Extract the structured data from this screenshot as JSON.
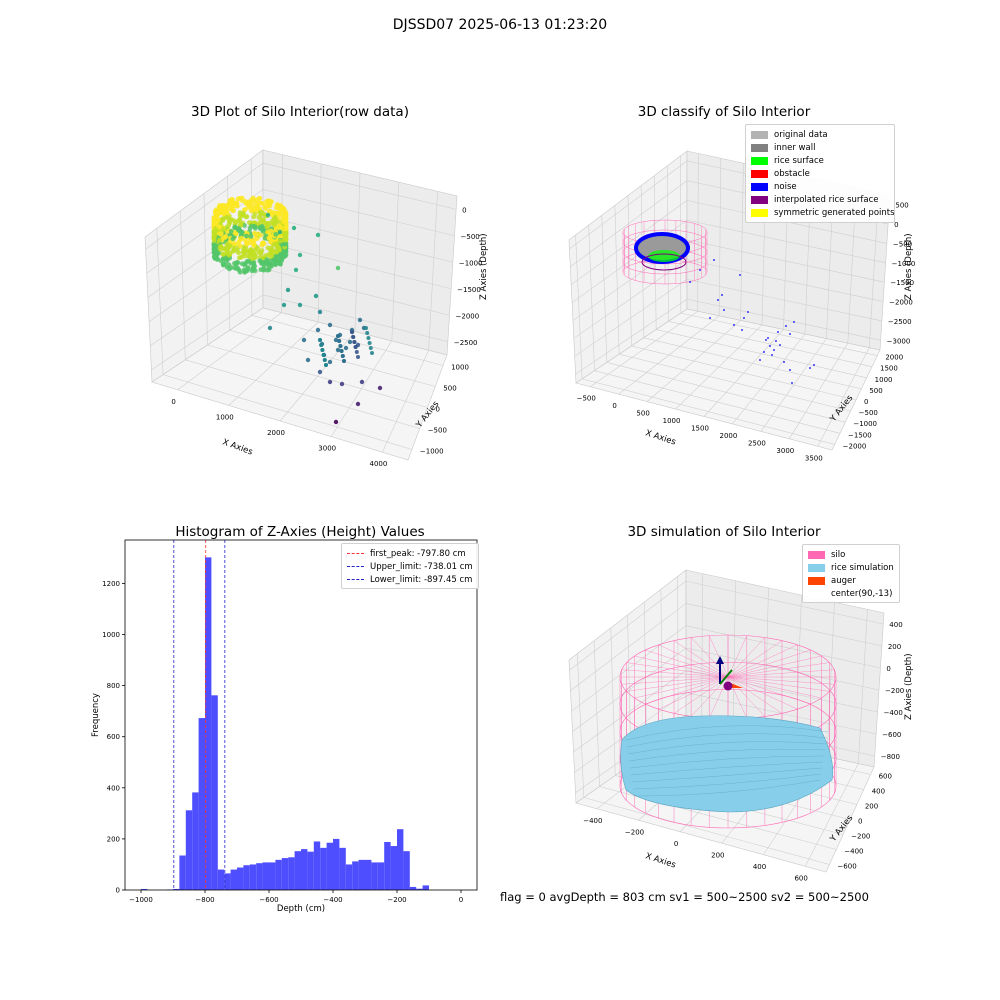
{
  "figure_title": "DJSSD07 2025-06-13 01:23:20",
  "status_line": "flag = 0     avgDepth = 803 cm  sv1 = 500~2500  sv2 = 500~2500",
  "colors": {
    "hist": "#4444ff",
    "peak": "#ff3333",
    "limit": "#2222cc",
    "silo": "#ff69b4",
    "rice": "#87ceeb",
    "auger": "#ff4500"
  },
  "chart_data": [
    {
      "type": "scatter",
      "title": "3D Plot of Silo Interior(row data)",
      "xlabel": "X Axies",
      "ylabel": "Y Axies",
      "zlabel": "Z Axies (Depth)",
      "x_ticks": [
        "0",
        "1000",
        "2000",
        "3000",
        "4000"
      ],
      "y_ticks": [
        "1000",
        "500",
        "0",
        "−500",
        "−1000"
      ],
      "z_ticks": [
        "0",
        "−500",
        "−1000",
        "−1500",
        "−2000",
        "−2500"
      ],
      "colormap": "viridis"
    },
    {
      "type": "scatter",
      "title": "3D classify of Silo Interior",
      "xlabel": "X Axies",
      "ylabel": "Y Axies",
      "zlabel": "Z Axies (Depth)",
      "x_ticks": [
        "−500",
        "0",
        "500",
        "1000",
        "1500",
        "2000",
        "2500",
        "3000",
        "3500"
      ],
      "y_ticks": [
        "2000",
        "1500",
        "1000",
        "500",
        "0",
        "−500",
        "−1000",
        "−1500",
        "−2000"
      ],
      "z_ticks": [
        "500",
        "0",
        "−500",
        "−1000",
        "−1500",
        "−2000",
        "−2500",
        "−3000"
      ],
      "legend": [
        {
          "label": "original data",
          "color": "#b3b3b3"
        },
        {
          "label": "inner wall",
          "color": "#808080"
        },
        {
          "label": "rice surface",
          "color": "#00ff00"
        },
        {
          "label": "obstacle",
          "color": "#ff0000"
        },
        {
          "label": "noise",
          "color": "#0000ff"
        },
        {
          "label": "interpolated rice surface",
          "color": "#800080"
        },
        {
          "label": "symmetric generated points",
          "color": "#ffff00"
        }
      ]
    },
    {
      "type": "bar",
      "title": "Histogram of Z-Axies (Height) Values",
      "xlabel": "Depth (cm)",
      "ylabel": "Frequency",
      "xlim": [
        -1050,
        50
      ],
      "ylim": [
        0,
        1370
      ],
      "x_ticks": [
        -1000,
        -800,
        -600,
        -400,
        -200,
        0
      ],
      "x_tick_labels": [
        "−1000",
        "−800",
        "−600",
        "−400",
        "−200",
        "0"
      ],
      "y_ticks": [
        0,
        200,
        400,
        600,
        800,
        1000,
        1200
      ],
      "bin_start": -1020,
      "bin_width": 20,
      "values": [
        0,
        4,
        0,
        0,
        0,
        2,
        4,
        135,
        312,
        382,
        673,
        1302,
        762,
        80,
        65,
        80,
        88,
        97,
        100,
        105,
        108,
        108,
        118,
        125,
        128,
        152,
        160,
        150,
        190,
        165,
        185,
        200,
        165,
        100,
        112,
        118,
        118,
        108,
        108,
        188,
        172,
        238,
        152,
        12,
        5,
        18
      ],
      "vlines": [
        {
          "value": -797.8,
          "label": "first_peak: -797.80 cm",
          "color": "#ff3333"
        },
        {
          "value": -738.01,
          "label": "Upper_limit: -738.01 cm",
          "color": "#2222cc"
        },
        {
          "value": -897.45,
          "label": "Lower_limit: -897.45 cm",
          "color": "#2222cc"
        }
      ]
    },
    {
      "type": "scatter",
      "title": "3D simulation of Silo Interior",
      "xlabel": "X Axies",
      "ylabel": "Y Axies",
      "zlabel": "Z Axies (Depth)",
      "x_ticks": [
        "−400",
        "−200",
        "0",
        "200",
        "400",
        "600"
      ],
      "y_ticks": [
        "600",
        "400",
        "200",
        "0",
        "−200",
        "−400",
        "−600"
      ],
      "z_ticks": [
        "400",
        "200",
        "0",
        "−200",
        "−400",
        "−600",
        "−800"
      ],
      "legend": [
        {
          "label": "silo",
          "color": "#ff69b4"
        },
        {
          "label": "rice simulation",
          "color": "#87ceeb"
        },
        {
          "label": "auger",
          "color": "#ff4500"
        },
        {
          "label": "center(90,-13)",
          "color": "#ffffff"
        }
      ]
    }
  ]
}
